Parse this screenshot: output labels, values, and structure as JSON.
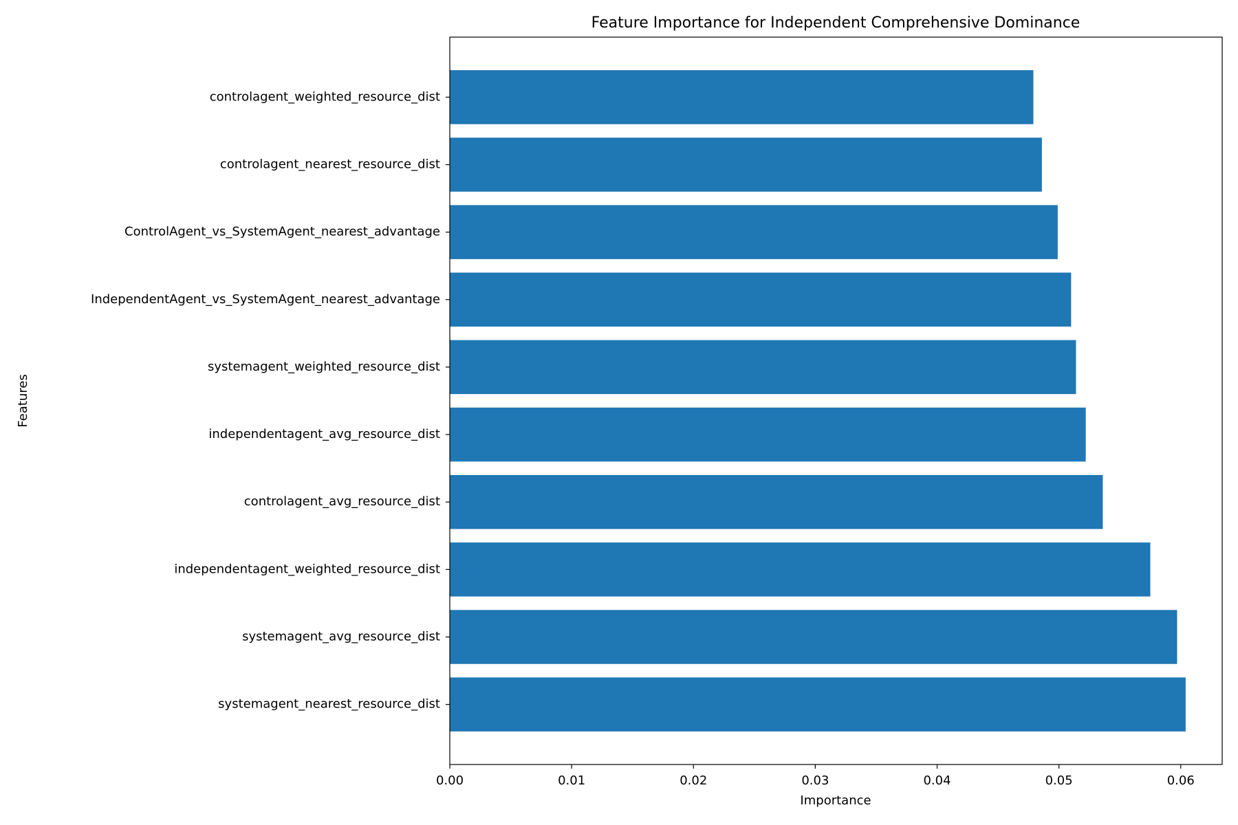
{
  "chart_data": {
    "type": "barh",
    "title": "Feature Importance for Independent Comprehensive Dominance",
    "x_label": "Importance",
    "y_label": "Features",
    "color": "#1f77b4",
    "categories": [
      "controlagent_weighted_resource_dist",
      "controlagent_nearest_resource_dist",
      "ControlAgent_vs_SystemAgent_nearest_advantage",
      "IndependentAgent_vs_SystemAgent_nearest_advantage",
      "systemagent_weighted_resource_dist",
      "independentagent_avg_resource_dist",
      "controlagent_avg_resource_dist",
      "independentagent_weighted_resource_dist",
      "systemagent_avg_resource_dist",
      "systemagent_nearest_resource_dist"
    ],
    "values": [
      0.0479,
      0.0486,
      0.0499,
      0.051,
      0.0514,
      0.0522,
      0.0536,
      0.0575,
      0.0597,
      0.0604
    ],
    "xlim": [
      0,
      0.0634
    ],
    "xticks": [
      {
        "value": 0,
        "label": "0.00"
      },
      {
        "value": 0.01,
        "label": "0.01"
      },
      {
        "value": 0.02,
        "label": "0.02"
      },
      {
        "value": 0.03,
        "label": "0.03"
      },
      {
        "value": 0.04,
        "label": "0.04"
      },
      {
        "value": 0.05,
        "label": "0.05"
      },
      {
        "value": 0.06,
        "label": "0.06"
      }
    ],
    "grid": false
  }
}
